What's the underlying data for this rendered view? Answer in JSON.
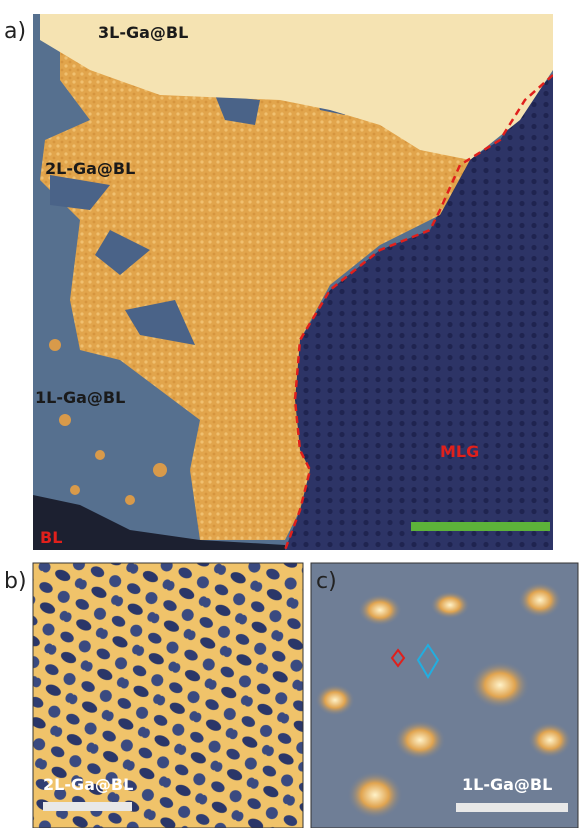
{
  "panels": [
    {
      "label": "a)",
      "annotations": [
        "3L-Ga@BL",
        "2L-Ga@BL",
        "1L-Ga@BL",
        "BL",
        "MLG"
      ]
    },
    {
      "label": "b)",
      "annotations": [
        "2L-Ga@BL"
      ]
    },
    {
      "label": "c)",
      "annotations": [
        "1L-Ga@BL"
      ]
    }
  ]
}
